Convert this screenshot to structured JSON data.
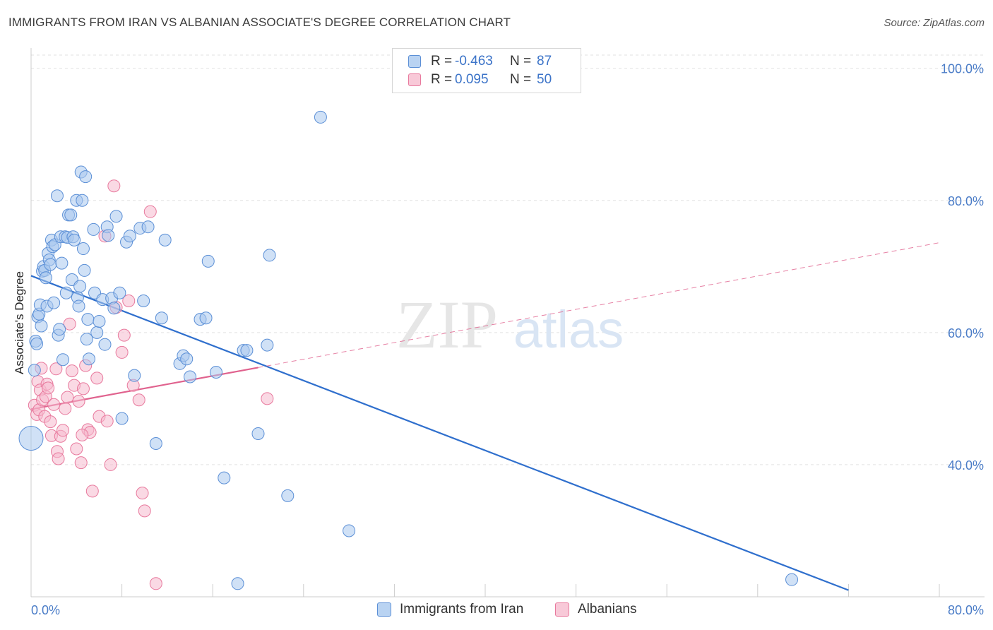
{
  "title": "IMMIGRANTS FROM IRAN VS ALBANIAN ASSOCIATE'S DEGREE CORRELATION CHART",
  "source": "Source: ZipAtlas.com",
  "colors": {
    "blue_fill": "#a9c8ee",
    "blue_stroke": "#5b8fd6",
    "blue_line": "#2f6fcd",
    "pink_fill": "#f6b9cd",
    "pink_stroke": "#e8799d",
    "pink_line": "#e0628e",
    "tick_text": "#4a7cc7",
    "grid": "#e2e2e2"
  },
  "legend": {
    "r_label": "R =",
    "n_label": "N =",
    "rows": [
      {
        "series": "Immigrants from Iran",
        "r": "-0.463",
        "n": "87"
      },
      {
        "series": "Albanians",
        "r": "0.095",
        "n": "50"
      }
    ]
  },
  "chart_data": {
    "type": "scatter",
    "title": "IMMIGRANTS FROM IRAN VS ALBANIAN ASSOCIATE'S DEGREE CORRELATION CHART",
    "xlabel": "",
    "ylabel": "Associate's Degree",
    "xlim": [
      0,
      80
    ],
    "ylim": [
      20,
      102
    ],
    "x_tick_labels": [
      "0.0%",
      "80.0%"
    ],
    "y_ticks": [
      40,
      60,
      80,
      100
    ],
    "y_tick_labels": [
      "40.0%",
      "60.0%",
      "80.0%",
      "100.0%"
    ],
    "grid": true,
    "legend_position": "top-center",
    "watermark": "ZIPatlas",
    "series": [
      {
        "name": "Immigrants from Iran",
        "color": "#a9c8ee",
        "trend": {
          "x0": 0,
          "y0": 68.6,
          "x1": 72,
          "y1": 21.0,
          "style": "solid"
        },
        "points": [
          [
            0.0,
            44.0,
            "large"
          ],
          [
            0.3,
            54.3
          ],
          [
            0.4,
            58.7
          ],
          [
            0.5,
            58.3
          ],
          [
            0.6,
            62.4
          ],
          [
            0.7,
            62.8
          ],
          [
            0.8,
            64.2
          ],
          [
            0.9,
            61.0
          ],
          [
            1.0,
            69.3
          ],
          [
            1.1,
            70.0
          ],
          [
            1.2,
            69.4
          ],
          [
            1.3,
            68.3
          ],
          [
            1.4,
            64.0
          ],
          [
            1.5,
            72.0
          ],
          [
            1.6,
            71.0
          ],
          [
            1.7,
            70.3
          ],
          [
            1.8,
            74.0
          ],
          [
            1.9,
            73.0
          ],
          [
            2.0,
            64.5
          ],
          [
            2.1,
            73.3
          ],
          [
            2.3,
            80.7
          ],
          [
            2.4,
            59.6
          ],
          [
            2.5,
            60.5
          ],
          [
            2.6,
            74.5
          ],
          [
            2.7,
            70.5
          ],
          [
            2.8,
            55.9
          ],
          [
            3.0,
            74.5
          ],
          [
            3.1,
            66.0
          ],
          [
            3.2,
            74.4
          ],
          [
            3.3,
            77.8
          ],
          [
            3.5,
            77.8
          ],
          [
            3.6,
            68.0
          ],
          [
            3.7,
            74.5
          ],
          [
            3.8,
            74.0
          ],
          [
            4.0,
            80.0
          ],
          [
            4.1,
            65.3
          ],
          [
            4.2,
            64.0
          ],
          [
            4.3,
            67.0
          ],
          [
            4.4,
            84.3
          ],
          [
            4.5,
            80.0
          ],
          [
            4.6,
            72.7
          ],
          [
            4.7,
            69.4
          ],
          [
            4.8,
            83.6
          ],
          [
            4.9,
            59.0
          ],
          [
            5.0,
            62.0
          ],
          [
            5.1,
            56.0
          ],
          [
            5.5,
            75.6
          ],
          [
            5.6,
            66.0
          ],
          [
            5.8,
            60.0
          ],
          [
            6.0,
            61.7
          ],
          [
            6.3,
            65.0
          ],
          [
            6.5,
            58.2
          ],
          [
            6.7,
            76.0
          ],
          [
            6.8,
            74.7
          ],
          [
            7.1,
            65.2
          ],
          [
            7.3,
            63.7
          ],
          [
            7.5,
            77.6
          ],
          [
            7.8,
            66.0
          ],
          [
            8.0,
            47.0
          ],
          [
            8.4,
            73.7
          ],
          [
            8.7,
            74.6
          ],
          [
            9.1,
            53.5
          ],
          [
            9.6,
            75.8
          ],
          [
            9.9,
            64.8
          ],
          [
            10.3,
            76.0
          ],
          [
            11.0,
            43.2
          ],
          [
            11.5,
            62.2
          ],
          [
            11.8,
            74.0
          ],
          [
            13.1,
            55.3
          ],
          [
            13.4,
            56.5
          ],
          [
            13.7,
            56.0
          ],
          [
            14.0,
            53.3
          ],
          [
            14.9,
            62.0
          ],
          [
            15.4,
            62.2
          ],
          [
            15.6,
            70.8
          ],
          [
            16.3,
            54.0
          ],
          [
            17.0,
            38.0
          ],
          [
            18.2,
            22.0
          ],
          [
            18.7,
            57.3
          ],
          [
            20.0,
            44.7
          ],
          [
            21.0,
            71.7
          ],
          [
            20.8,
            58.1
          ],
          [
            22.6,
            35.3
          ],
          [
            25.5,
            92.6
          ],
          [
            28.0,
            30.0
          ],
          [
            67.0,
            22.6
          ],
          [
            19.0,
            57.3
          ]
        ]
      },
      {
        "name": "Albanians",
        "color": "#f6b9cd",
        "trend": {
          "x0": 0,
          "y0": 48.4,
          "x1": 20,
          "y1": 54.7,
          "x2": 80,
          "y2": 73.6,
          "style": "solid-then-dashed"
        },
        "points": [
          [
            0.3,
            49.0
          ],
          [
            0.5,
            47.6
          ],
          [
            0.6,
            52.6
          ],
          [
            0.7,
            48.3
          ],
          [
            0.8,
            51.3
          ],
          [
            0.9,
            54.6
          ],
          [
            1.0,
            49.8
          ],
          [
            1.2,
            47.3
          ],
          [
            1.3,
            50.3
          ],
          [
            1.4,
            52.2
          ],
          [
            1.5,
            51.6
          ],
          [
            1.7,
            46.5
          ],
          [
            1.8,
            44.4
          ],
          [
            2.0,
            49.1
          ],
          [
            2.2,
            54.5
          ],
          [
            2.3,
            42.0
          ],
          [
            2.4,
            40.9
          ],
          [
            2.6,
            44.3
          ],
          [
            2.8,
            45.2
          ],
          [
            3.0,
            48.5
          ],
          [
            3.2,
            50.2
          ],
          [
            3.4,
            61.3
          ],
          [
            3.6,
            54.2
          ],
          [
            3.8,
            52.0
          ],
          [
            4.0,
            42.4
          ],
          [
            4.2,
            49.6
          ],
          [
            4.4,
            40.3
          ],
          [
            4.6,
            51.5
          ],
          [
            4.8,
            55.0
          ],
          [
            5.0,
            45.3
          ],
          [
            5.2,
            44.9
          ],
          [
            5.4,
            36.0
          ],
          [
            5.8,
            53.1
          ],
          [
            6.0,
            47.3
          ],
          [
            6.5,
            74.6
          ],
          [
            6.7,
            46.6
          ],
          [
            7.0,
            40.0
          ],
          [
            7.3,
            82.2
          ],
          [
            7.5,
            63.8
          ],
          [
            8.0,
            57.0
          ],
          [
            8.2,
            59.6
          ],
          [
            8.6,
            64.8
          ],
          [
            9.0,
            52.0
          ],
          [
            9.5,
            49.8
          ],
          [
            9.8,
            35.7
          ],
          [
            10.0,
            33.0
          ],
          [
            10.5,
            78.3
          ],
          [
            11.0,
            22.0
          ],
          [
            20.8,
            50.0
          ],
          [
            4.5,
            44.5
          ]
        ]
      }
    ]
  }
}
